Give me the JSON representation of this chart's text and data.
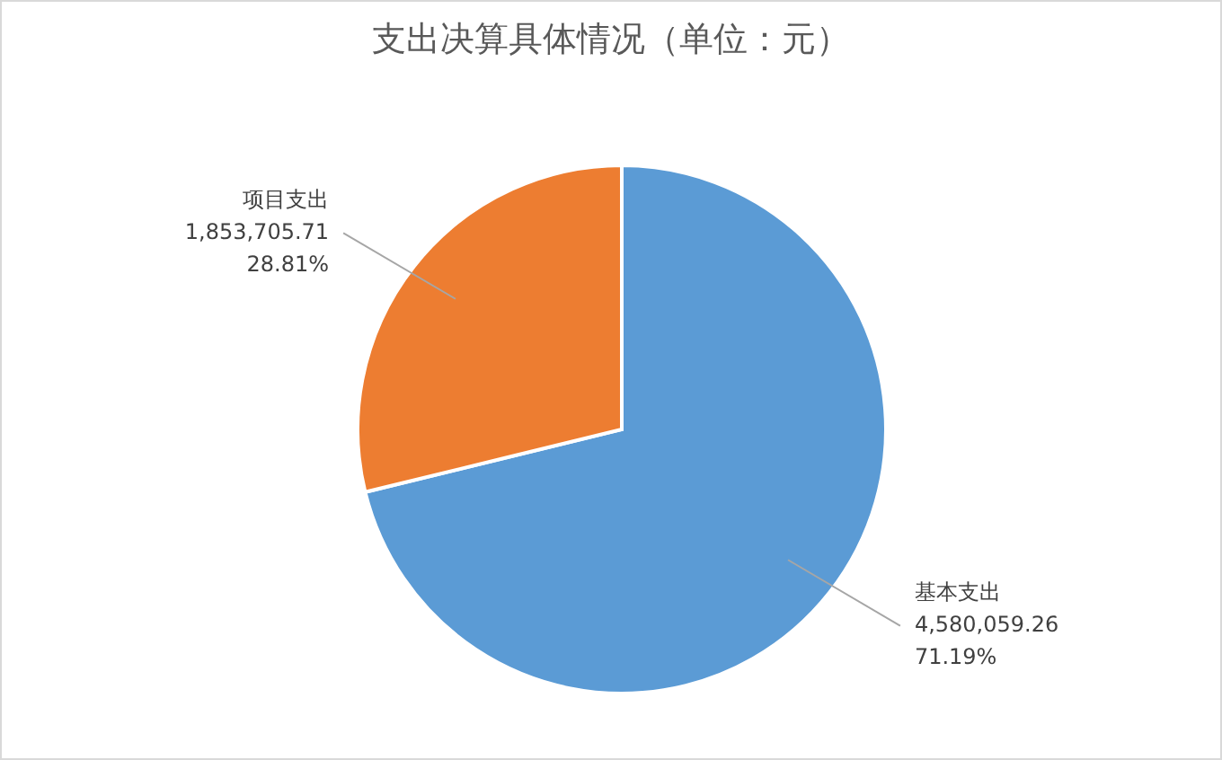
{
  "chart_data": {
    "type": "pie",
    "title": "支出决算具体情况（单位：元）",
    "categories": [
      "基本支出",
      "项目支出"
    ],
    "values": [
      4580059.26,
      1853705.71
    ],
    "colors": [
      "#5b9bd5",
      "#ed7d31"
    ],
    "value_labels": [
      "4,580,059.26\n71.19%",
      "1,853,705.71\n28.81%"
    ],
    "legend": false
  }
}
